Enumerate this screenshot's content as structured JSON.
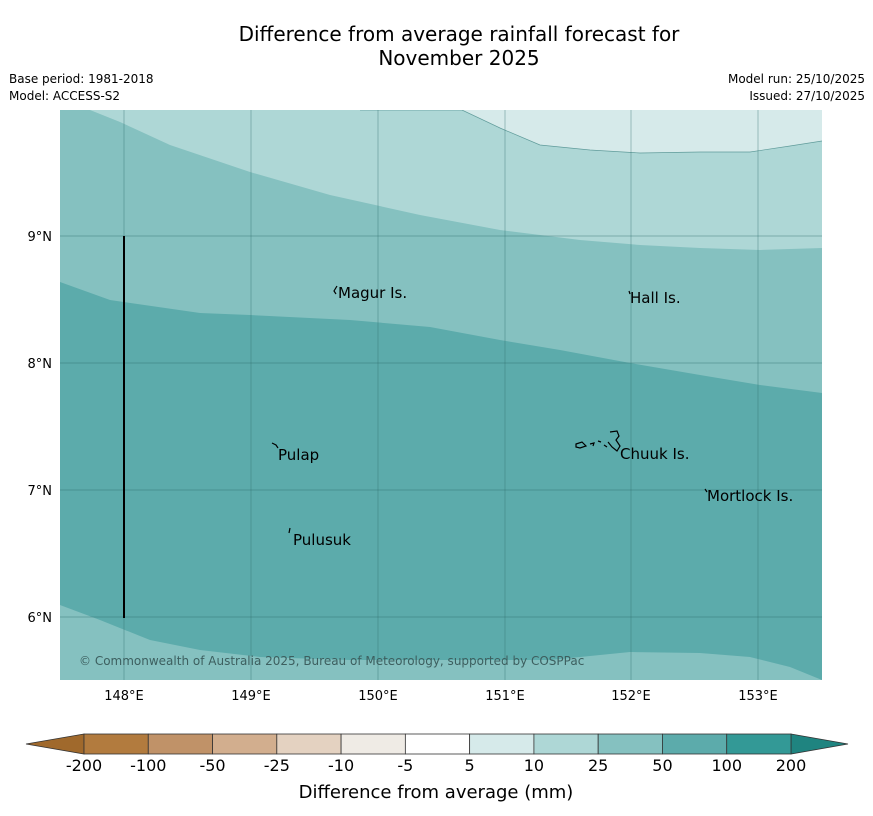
{
  "header": {
    "title_line1": "Difference from average rainfall forecast for",
    "title_line2": "November 2025",
    "base_period": "Base period: 1981-2018",
    "model": "Model: ACCESS-S2",
    "model_run": "Model run: 25/10/2025",
    "issued": "Issued: 27/10/2025"
  },
  "map": {
    "lon_ticks": [
      "148°E",
      "149°E",
      "150°E",
      "151°E",
      "152°E",
      "153°E"
    ],
    "lat_ticks": [
      "9°N",
      "8°N",
      "7°N",
      "6°N"
    ],
    "places": [
      "Magur Is.",
      "Hall Is.",
      "Pulap",
      "Chuuk Is.",
      "Mortlock Is.",
      "Pulusuk"
    ],
    "copyright": "© Commonwealth of Australia 2025, Bureau of Meteorology, supported by COSPPac"
  },
  "colorbar": {
    "labels": [
      "-200",
      "-100",
      "-50",
      "-25",
      "-10",
      "-5",
      "5",
      "10",
      "25",
      "50",
      "100",
      "200"
    ],
    "colors": [
      "#b27b3e",
      "#c09268",
      "#d2ae8e",
      "#e4d2c1",
      "#efebe5",
      "#ffffff",
      "#d6eaea",
      "#aed7d6",
      "#85c1c0",
      "#5cabab",
      "#339996"
    ],
    "low_extend_color": "#a0692c",
    "high_extend_color": "#1f8480",
    "title": "Difference from average (mm)"
  }
}
